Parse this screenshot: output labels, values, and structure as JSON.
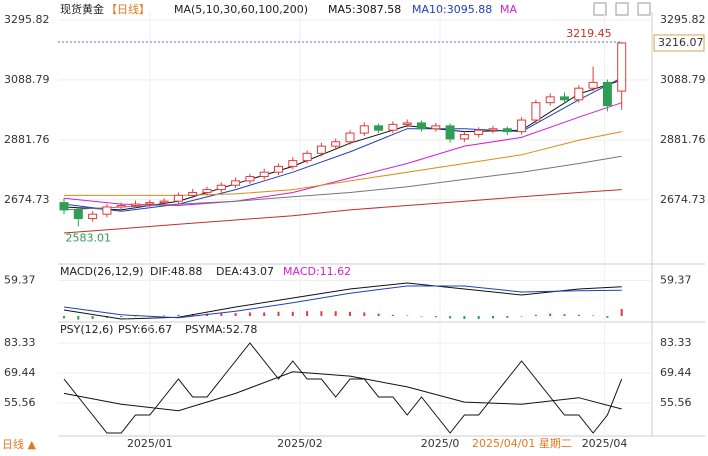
{
  "chart_data": {
    "type": "candlestick",
    "title": "现货黄金",
    "period": "【日线】",
    "ma_legend": "MA(5,10,30,60,100,200)",
    "ma5_label": "MA5:3087.58",
    "ma10_label": "MA10:3095.88",
    "ma_more": "MA",
    "open": [
      2665,
      2640,
      2610,
      2625,
      2650,
      2655,
      2660,
      2665,
      2670,
      2690,
      2700,
      2710,
      2725,
      2740,
      2755,
      2770,
      2790,
      2810,
      2835,
      2860,
      2875,
      2905,
      2930,
      2915,
      2935,
      2940,
      2920,
      2930,
      2885,
      2900,
      2915,
      2920,
      2910,
      2950,
      3010,
      3030,
      3020,
      3060,
      3080,
      3050
    ],
    "high": [
      2680,
      2648,
      2635,
      2660,
      2665,
      2672,
      2675,
      2680,
      2700,
      2712,
      2720,
      2735,
      2752,
      2765,
      2782,
      2800,
      2822,
      2845,
      2872,
      2886,
      2915,
      2942,
      2938,
      2945,
      2952,
      2948,
      2940,
      2938,
      2910,
      2925,
      2930,
      2928,
      2960,
      3020,
      3042,
      3045,
      3070,
      3135,
      3090,
      3219.45
    ],
    "low": [
      2625,
      2583.01,
      2600,
      2615,
      2640,
      2645,
      2650,
      2655,
      2660,
      2680,
      2690,
      2700,
      2715,
      2730,
      2745,
      2760,
      2780,
      2800,
      2825,
      2850,
      2865,
      2895,
      2905,
      2905,
      2925,
      2910,
      2910,
      2872,
      2875,
      2890,
      2905,
      2898,
      2900,
      2940,
      3000,
      3005,
      3010,
      3050,
      2980,
      2985
    ],
    "close": [
      2640,
      2610,
      2625,
      2650,
      2655,
      2660,
      2665,
      2670,
      2690,
      2700,
      2710,
      2725,
      2740,
      2755,
      2770,
      2790,
      2810,
      2835,
      2860,
      2875,
      2905,
      2930,
      2915,
      2935,
      2940,
      2920,
      2930,
      2885,
      2900,
      2915,
      2920,
      2910,
      2950,
      3010,
      3030,
      3020,
      3060,
      3080,
      3000,
      3216.07
    ],
    "up_color": "#e23b3b",
    "down_color": "#2e9e55",
    "ma_x": [
      0,
      4,
      8,
      12,
      16,
      20,
      24,
      28,
      32,
      36,
      39
    ],
    "ma_series": [
      {
        "color": "#111111",
        "values": [
          2650,
          2640,
          2670,
          2730,
          2790,
          2870,
          2930,
          2910,
          2915,
          3040,
          3087.58
        ]
      },
      {
        "color": "#1f3fbf",
        "values": [
          2660,
          2635,
          2660,
          2710,
          2770,
          2840,
          2920,
          2920,
          2910,
          3020,
          3095.88
        ]
      },
      {
        "color": "#d020d0",
        "values": [
          2680,
          2660,
          2655,
          2670,
          2700,
          2750,
          2800,
          2860,
          2890,
          2960,
          3010
        ]
      },
      {
        "color": "#e08a10",
        "values": [
          2690,
          2690,
          2690,
          2695,
          2710,
          2740,
          2770,
          2800,
          2830,
          2880,
          2910
        ]
      },
      {
        "color": "#777777",
        "values": [
          2640,
          2650,
          2660,
          2670,
          2685,
          2700,
          2720,
          2745,
          2770,
          2800,
          2825
        ]
      },
      {
        "color": "#c0302a",
        "values": [
          2560,
          2575,
          2590,
          2605,
          2620,
          2640,
          2655,
          2670,
          2685,
          2700,
          2710
        ]
      }
    ],
    "ylim": [
      2460,
      3323
    ],
    "yticks": [
      3295.82,
      3088.79,
      2881.76,
      2674.73
    ],
    "high_label": "3219.45",
    "low_label": "2583.01",
    "last_label": "3216.07",
    "x_labels": [
      {
        "index": 6,
        "label": "2025/01"
      },
      {
        "index": 16.5,
        "label": "2025/02"
      },
      {
        "index": 26.3,
        "label": "2025/0"
      },
      {
        "index": 37.8,
        "label": "2025/04"
      }
    ],
    "crosshair_label": "2025/04/01 星期二",
    "footer": "日线 ▲",
    "macd": {
      "title": "MACD(26,12,9)",
      "dif_label": "DIF:48.88",
      "dea_label": "DEA:43.07",
      "macd_label": "MACD:11.62",
      "ylim": [
        -10,
        80
      ],
      "yticks": [
        59.37
      ],
      "dif": [
        10,
        -5,
        -2,
        15,
        30,
        45,
        55,
        45,
        35,
        45,
        48.88
      ],
      "dea": [
        15,
        2,
        -3,
        8,
        22,
        38,
        50,
        50,
        40,
        42,
        43.07
      ],
      "hist": [
        -4,
        -6,
        -5,
        -3,
        -2,
        -1,
        0,
        1,
        2,
        3,
        4,
        5,
        5,
        6,
        6,
        7,
        7,
        8,
        8,
        8,
        7,
        6,
        4,
        2,
        1,
        -1,
        -2,
        -4,
        -5,
        -5,
        -4,
        -3,
        -1,
        2,
        4,
        3,
        2,
        1,
        -3,
        11.62
      ]
    },
    "psy": {
      "title": "PSY(12,6)",
      "psy_label": "PSY:66.67",
      "psyma_label": "PSYMA:52.78",
      "ylim": [
        40.75,
        89.35
      ],
      "yticks": [
        83.33,
        69.44,
        55.56
      ],
      "psy": [
        66.67,
        58.33,
        50,
        41.67,
        41.67,
        50,
        50,
        58.33,
        66.67,
        58.33,
        58.33,
        66.67,
        75,
        83.33,
        75,
        66.67,
        75,
        66.67,
        66.67,
        58.33,
        66.67,
        66.67,
        58.33,
        58.33,
        50,
        58.33,
        50,
        41.67,
        50,
        50,
        58.33,
        66.67,
        75,
        66.67,
        58.33,
        50,
        50,
        41.67,
        50,
        66.67
      ],
      "psyma": [
        60,
        55,
        52,
        60,
        70,
        68,
        63,
        56,
        55,
        58,
        52.78
      ]
    }
  }
}
